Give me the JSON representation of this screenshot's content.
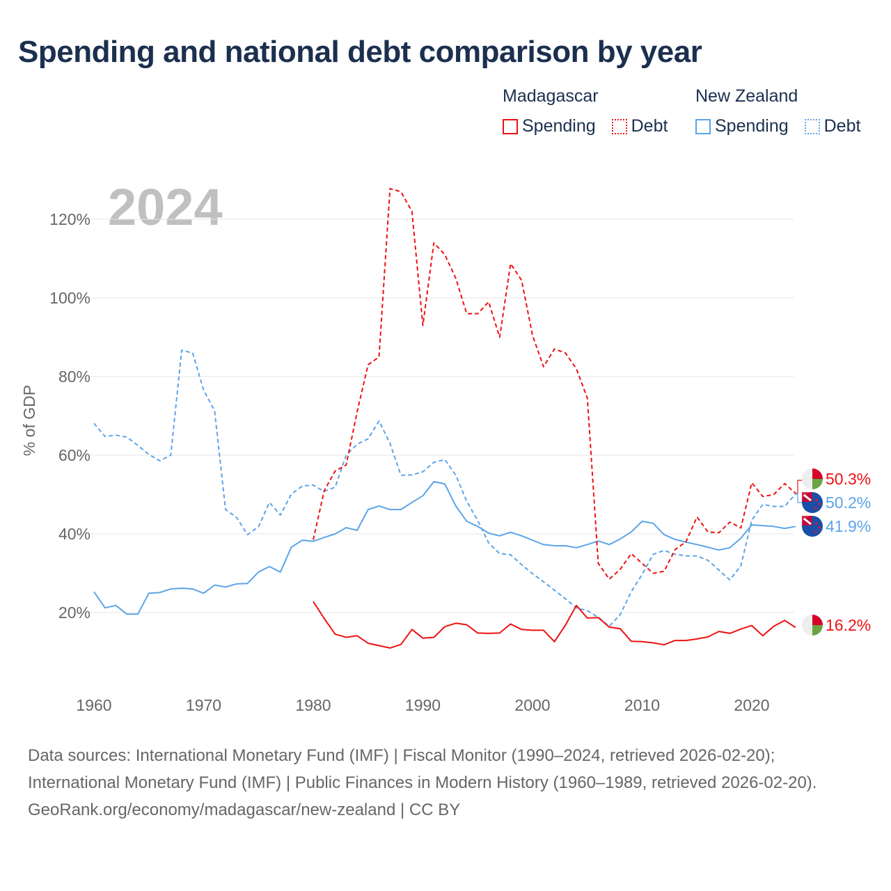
{
  "title": "Spending and national debt comparison by year",
  "legend": {
    "groups": [
      {
        "name": "Madagascar",
        "color": "#ee1111",
        "items": [
          "Spending",
          "Debt"
        ]
      },
      {
        "name": "New Zealand",
        "color": "#5ca4e8",
        "items": [
          "Spending",
          "Debt"
        ]
      }
    ]
  },
  "footer": {
    "sources": "Data sources: International Monetary Fund (IMF) | Fiscal Monitor (1990–2024, retrieved 2026-02-20); International Monetary Fund (IMF) | Public Finances in Modern History (1960–1989, retrieved 2026-02-20).",
    "credit": "GeoRank.org/economy/madagascar/new-zealand | CC BY"
  },
  "chart_data": {
    "type": "line",
    "title": "Spending and national debt comparison by year",
    "year_label": "2024",
    "xlabel": "",
    "ylabel": "% of GDP",
    "xlim": [
      1960,
      2024
    ],
    "ylim": [
      0,
      130
    ],
    "x_ticks": [
      1960,
      1970,
      1980,
      1990,
      2000,
      2010,
      2020
    ],
    "y_ticks": [
      20,
      40,
      60,
      80,
      100,
      120
    ],
    "y_tick_labels": [
      "20%",
      "40%",
      "60%",
      "80%",
      "100%",
      "120%"
    ],
    "grid": true,
    "legend_position": "top-right",
    "series": [
      {
        "name": "New Zealand Debt",
        "country": "nz",
        "style": "dashed",
        "color": "#5ca4e8",
        "start": 1960,
        "end_label": "50.2%",
        "values": [
          68.1,
          64.8,
          65.1,
          64.6,
          62.5,
          60.2,
          58.6,
          60,
          86.7,
          86,
          76.6,
          71.3,
          46.2,
          44.2,
          39.8,
          41.8,
          48,
          44.8,
          50.1,
          52.2,
          52.4,
          50.8,
          51.9,
          60,
          62.8,
          64.2,
          68.7,
          63,
          54.9,
          55,
          55.8,
          58.2,
          58.9,
          54.9,
          48.3,
          43.4,
          37.7,
          35,
          34.7,
          32.2,
          29.9,
          27.8,
          25.7,
          23.5,
          21.2,
          20.5,
          18.8,
          16.5,
          19.5,
          25.3,
          29.7,
          34.8,
          35.8,
          34.8,
          34.4,
          34.4,
          33.3,
          30.8,
          28.3,
          31.9,
          43.5,
          47.5,
          47,
          47,
          50.2
        ]
      },
      {
        "name": "New Zealand Spending",
        "country": "nz",
        "style": "solid",
        "color": "#5ca4e8",
        "start": 1960,
        "end_label": "41.9%",
        "values": [
          25.3,
          21.2,
          21.8,
          19.6,
          19.6,
          24.9,
          25.1,
          26,
          26.2,
          26,
          24.9,
          27,
          26.5,
          27.3,
          27.4,
          30.3,
          31.7,
          30.3,
          36.6,
          38.4,
          38.1,
          39.1,
          40,
          41.6,
          40.9,
          46.2,
          47.1,
          46.2,
          46.2,
          48,
          49.7,
          53.3,
          52.7,
          47.1,
          43.2,
          41.9,
          40.2,
          39.5,
          40.4,
          39.5,
          38.4,
          37.3,
          37,
          37,
          36.5,
          37.3,
          38.2,
          37.3,
          38.7,
          40.5,
          43.2,
          42.7,
          39.8,
          38.6,
          37.9,
          37.3,
          36.6,
          35.9,
          36.5,
          38.9,
          42.3,
          42.1,
          41.9,
          41.4,
          41.9
        ]
      },
      {
        "name": "Madagascar Debt",
        "country": "mg",
        "style": "dashed",
        "color": "#ee1111",
        "start": 1980,
        "end_label": "50.3%",
        "values": [
          38.5,
          51,
          56,
          57.5,
          71,
          83,
          85,
          127.8,
          127,
          122,
          93,
          114,
          111,
          105,
          96,
          96,
          99,
          90,
          108.7,
          104.5,
          90.5,
          82.5,
          87,
          86,
          82,
          74.5,
          32.5,
          28.5,
          31,
          35,
          32.5,
          30,
          30.5,
          36,
          38,
          44.3,
          40.5,
          40.3,
          43,
          41.5,
          53,
          49.5,
          50,
          52.8,
          50.3
        ]
      },
      {
        "name": "Madagascar Spending",
        "country": "mg",
        "style": "solid",
        "color": "#ee1111",
        "start": 1980,
        "end_label": "16.2%",
        "values": [
          22.8,
          18.5,
          14.5,
          13.7,
          14.1,
          12.2,
          11.6,
          11,
          11.9,
          15.7,
          13.5,
          13.7,
          16.4,
          17.3,
          16.9,
          14.8,
          14.7,
          14.8,
          17.1,
          15.7,
          15.5,
          15.5,
          12.6,
          16.8,
          21.8,
          18.6,
          18.7,
          16.3,
          15.9,
          12.7,
          12.6,
          12.3,
          11.8,
          12.9,
          12.9,
          13.3,
          13.8,
          15.2,
          14.7,
          15.8,
          16.7,
          14.1,
          16.5,
          18,
          16.2
        ]
      }
    ]
  }
}
